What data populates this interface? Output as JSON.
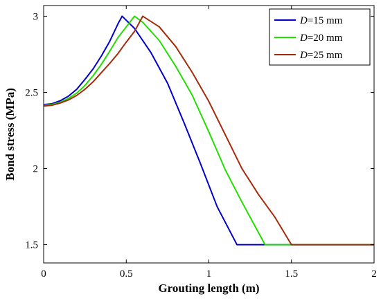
{
  "chart_data": {
    "type": "line",
    "xlabel": "Grouting length (m)",
    "ylabel": "Bond stress (MPa)",
    "xlim": [
      0,
      2
    ],
    "ylim": [
      1.38,
      3.07
    ],
    "xticks": [
      0,
      0.5,
      1,
      1.5,
      2
    ],
    "xtick_labels": [
      "0",
      "0.5",
      "1",
      "1.5",
      "2"
    ],
    "yticks": [
      1.5,
      2,
      2.5,
      3
    ],
    "ytick_labels": [
      "1.5",
      "2",
      "2.5",
      "3"
    ],
    "grid": false,
    "legend_position": "top-right",
    "series": [
      {
        "name": "D=15 mm",
        "legend_var": "D",
        "legend_rest": "=15 mm",
        "color": "#0000cc",
        "points": [
          [
            0,
            2.42
          ],
          [
            0.05,
            2.425
          ],
          [
            0.1,
            2.445
          ],
          [
            0.15,
            2.475
          ],
          [
            0.2,
            2.52
          ],
          [
            0.25,
            2.585
          ],
          [
            0.3,
            2.655
          ],
          [
            0.35,
            2.74
          ],
          [
            0.4,
            2.835
          ],
          [
            0.45,
            2.95
          ],
          [
            0.475,
            3.0
          ],
          [
            0.55,
            2.92
          ],
          [
            0.65,
            2.76
          ],
          [
            0.75,
            2.56
          ],
          [
            0.85,
            2.3
          ],
          [
            0.95,
            2.03
          ],
          [
            1.05,
            1.75
          ],
          [
            1.17,
            1.5
          ],
          [
            2.0,
            1.5
          ]
        ]
      },
      {
        "name": "D=20 mm",
        "legend_var": "D",
        "legend_rest": "=20 mm",
        "color": "#22dd00",
        "points": [
          [
            0,
            2.415
          ],
          [
            0.05,
            2.42
          ],
          [
            0.1,
            2.435
          ],
          [
            0.15,
            2.46
          ],
          [
            0.2,
            2.495
          ],
          [
            0.25,
            2.545
          ],
          [
            0.3,
            2.61
          ],
          [
            0.35,
            2.685
          ],
          [
            0.4,
            2.77
          ],
          [
            0.45,
            2.86
          ],
          [
            0.5,
            2.93
          ],
          [
            0.55,
            3.0
          ],
          [
            0.6,
            2.96
          ],
          [
            0.7,
            2.84
          ],
          [
            0.8,
            2.67
          ],
          [
            0.9,
            2.48
          ],
          [
            1.0,
            2.24
          ],
          [
            1.1,
            1.99
          ],
          [
            1.2,
            1.78
          ],
          [
            1.34,
            1.5
          ],
          [
            2.0,
            1.5
          ]
        ]
      },
      {
        "name": "D=25 mm",
        "legend_var": "D",
        "legend_rest": "=25 mm",
        "color": "#a52a0a",
        "points": [
          [
            0,
            2.41
          ],
          [
            0.05,
            2.415
          ],
          [
            0.1,
            2.43
          ],
          [
            0.15,
            2.45
          ],
          [
            0.2,
            2.48
          ],
          [
            0.25,
            2.52
          ],
          [
            0.3,
            2.57
          ],
          [
            0.35,
            2.63
          ],
          [
            0.4,
            2.69
          ],
          [
            0.45,
            2.755
          ],
          [
            0.5,
            2.83
          ],
          [
            0.55,
            2.9
          ],
          [
            0.6,
            3.0
          ],
          [
            0.7,
            2.93
          ],
          [
            0.8,
            2.8
          ],
          [
            0.9,
            2.63
          ],
          [
            1.0,
            2.44
          ],
          [
            1.1,
            2.22
          ],
          [
            1.2,
            2.0
          ],
          [
            1.3,
            1.83
          ],
          [
            1.4,
            1.68
          ],
          [
            1.5,
            1.5
          ],
          [
            2.0,
            1.5
          ]
        ]
      }
    ]
  }
}
